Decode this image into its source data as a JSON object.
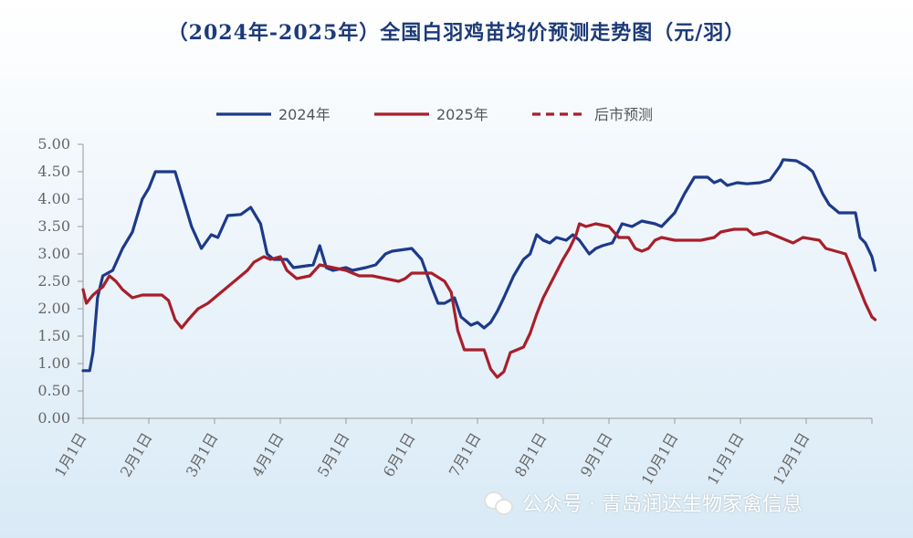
{
  "chart_data": {
    "type": "line",
    "title": "（2024年-2025年）全国白羽鸡苗均价预测走势图（元/羽）",
    "xlabel": "",
    "ylabel": "",
    "ylim": [
      0,
      5
    ],
    "yticks": [
      "0.00",
      "0.50",
      "1.00",
      "1.50",
      "2.00",
      "2.50",
      "3.00",
      "3.50",
      "4.00",
      "4.50",
      "5.00"
    ],
    "xticks": [
      "1月1日",
      "2月1日",
      "3月1日",
      "4月1日",
      "5月1日",
      "6月1日",
      "7月1日",
      "8月1日",
      "9月1日",
      "10月1日",
      "11月1日",
      "12月1日"
    ],
    "grid": false,
    "legend_position": "top",
    "series": [
      {
        "name": "2024年",
        "color": "#1d3a8a",
        "style": "solid",
        "points": [
          [
            0,
            0.87
          ],
          [
            0.1,
            0.87
          ],
          [
            0.15,
            1.2
          ],
          [
            0.22,
            2.2
          ],
          [
            0.3,
            2.6
          ],
          [
            0.45,
            2.7
          ],
          [
            0.6,
            3.1
          ],
          [
            0.75,
            3.4
          ],
          [
            0.9,
            4.0
          ],
          [
            1.0,
            4.2
          ],
          [
            1.1,
            4.5
          ],
          [
            1.4,
            4.5
          ],
          [
            1.55,
            3.9
          ],
          [
            1.65,
            3.5
          ],
          [
            1.8,
            3.1
          ],
          [
            1.95,
            3.35
          ],
          [
            2.05,
            3.3
          ],
          [
            2.2,
            3.7
          ],
          [
            2.4,
            3.72
          ],
          [
            2.55,
            3.85
          ],
          [
            2.7,
            3.55
          ],
          [
            2.8,
            3.0
          ],
          [
            2.9,
            2.9
          ],
          [
            3.1,
            2.9
          ],
          [
            3.2,
            2.75
          ],
          [
            3.5,
            2.8
          ],
          [
            3.6,
            3.15
          ],
          [
            3.7,
            2.75
          ],
          [
            3.8,
            2.7
          ],
          [
            4.0,
            2.75
          ],
          [
            4.1,
            2.7
          ],
          [
            4.3,
            2.75
          ],
          [
            4.45,
            2.8
          ],
          [
            4.6,
            3.0
          ],
          [
            4.7,
            3.05
          ],
          [
            5.0,
            3.1
          ],
          [
            5.15,
            2.9
          ],
          [
            5.3,
            2.4
          ],
          [
            5.4,
            2.1
          ],
          [
            5.5,
            2.1
          ],
          [
            5.65,
            2.2
          ],
          [
            5.75,
            1.85
          ],
          [
            5.9,
            1.7
          ],
          [
            6.0,
            1.75
          ],
          [
            6.1,
            1.65
          ],
          [
            6.2,
            1.75
          ],
          [
            6.3,
            1.95
          ],
          [
            6.4,
            2.2
          ],
          [
            6.55,
            2.6
          ],
          [
            6.7,
            2.9
          ],
          [
            6.8,
            3.0
          ],
          [
            6.9,
            3.35
          ],
          [
            7.0,
            3.25
          ],
          [
            7.1,
            3.2
          ],
          [
            7.2,
            3.3
          ],
          [
            7.35,
            3.25
          ],
          [
            7.45,
            3.35
          ],
          [
            7.55,
            3.25
          ],
          [
            7.7,
            3.0
          ],
          [
            7.8,
            3.1
          ],
          [
            7.9,
            3.15
          ],
          [
            8.05,
            3.2
          ],
          [
            8.2,
            3.55
          ],
          [
            8.35,
            3.5
          ],
          [
            8.5,
            3.6
          ],
          [
            8.7,
            3.55
          ],
          [
            8.8,
            3.5
          ],
          [
            9.0,
            3.75
          ],
          [
            9.15,
            4.1
          ],
          [
            9.3,
            4.4
          ],
          [
            9.5,
            4.4
          ],
          [
            9.6,
            4.3
          ],
          [
            9.7,
            4.35
          ],
          [
            9.8,
            4.25
          ],
          [
            9.95,
            4.3
          ],
          [
            10.1,
            4.28
          ],
          [
            10.3,
            4.3
          ],
          [
            10.45,
            4.35
          ],
          [
            10.6,
            4.6
          ],
          [
            10.65,
            4.72
          ],
          [
            10.85,
            4.7
          ],
          [
            11.0,
            4.6
          ],
          [
            11.1,
            4.5
          ],
          [
            11.25,
            4.1
          ],
          [
            11.35,
            3.9
          ],
          [
            11.5,
            3.75
          ],
          [
            11.75,
            3.75
          ],
          [
            11.82,
            3.3
          ],
          [
            11.9,
            3.2
          ],
          [
            12.0,
            2.95
          ],
          [
            12.05,
            2.7
          ]
        ]
      },
      {
        "name": "2025年",
        "color": "#a81f2a",
        "style": "solid",
        "points": [
          [
            0,
            2.35
          ],
          [
            0.05,
            2.1
          ],
          [
            0.15,
            2.25
          ],
          [
            0.3,
            2.4
          ],
          [
            0.4,
            2.6
          ],
          [
            0.5,
            2.5
          ],
          [
            0.6,
            2.35
          ],
          [
            0.75,
            2.2
          ],
          [
            0.9,
            2.25
          ],
          [
            1.2,
            2.25
          ],
          [
            1.3,
            2.15
          ],
          [
            1.4,
            1.8
          ],
          [
            1.5,
            1.65
          ],
          [
            1.6,
            1.8
          ],
          [
            1.75,
            2.0
          ],
          [
            1.9,
            2.1
          ],
          [
            2.0,
            2.2
          ],
          [
            2.2,
            2.4
          ],
          [
            2.35,
            2.55
          ],
          [
            2.5,
            2.7
          ],
          [
            2.6,
            2.85
          ],
          [
            2.75,
            2.95
          ],
          [
            2.85,
            2.9
          ],
          [
            3.0,
            2.95
          ],
          [
            3.1,
            2.7
          ],
          [
            3.25,
            2.55
          ],
          [
            3.45,
            2.6
          ],
          [
            3.6,
            2.8
          ],
          [
            3.8,
            2.75
          ],
          [
            4.0,
            2.7
          ],
          [
            4.2,
            2.6
          ],
          [
            4.4,
            2.6
          ],
          [
            4.6,
            2.55
          ],
          [
            4.8,
            2.5
          ],
          [
            4.9,
            2.55
          ],
          [
            5.0,
            2.65
          ],
          [
            5.3,
            2.65
          ],
          [
            5.5,
            2.5
          ],
          [
            5.6,
            2.3
          ],
          [
            5.7,
            1.6
          ],
          [
            5.8,
            1.25
          ],
          [
            6.0,
            1.25
          ],
          [
            6.1,
            1.25
          ],
          [
            6.2,
            0.9
          ],
          [
            6.3,
            0.75
          ],
          [
            6.4,
            0.85
          ],
          [
            6.5,
            1.2
          ],
          [
            6.6,
            1.25
          ],
          [
            6.7,
            1.3
          ],
          [
            6.8,
            1.55
          ],
          [
            6.9,
            1.9
          ],
          [
            7.0,
            2.2
          ],
          [
            7.15,
            2.55
          ],
          [
            7.3,
            2.9
          ],
          [
            7.4,
            3.1
          ],
          [
            7.5,
            3.35
          ],
          [
            7.55,
            3.55
          ],
          [
            7.65,
            3.5
          ],
          [
            7.8,
            3.55
          ],
          [
            8.0,
            3.5
          ],
          [
            8.15,
            3.3
          ],
          [
            8.3,
            3.3
          ],
          [
            8.4,
            3.1
          ],
          [
            8.5,
            3.05
          ],
          [
            8.6,
            3.1
          ],
          [
            8.7,
            3.25
          ],
          [
            8.8,
            3.3
          ],
          [
            9.0,
            3.25
          ],
          [
            9.2,
            3.25
          ],
          [
            9.4,
            3.25
          ],
          [
            9.6,
            3.3
          ],
          [
            9.7,
            3.4
          ],
          [
            9.9,
            3.45
          ],
          [
            10.1,
            3.45
          ],
          [
            10.2,
            3.35
          ],
          [
            10.4,
            3.4
          ],
          [
            10.6,
            3.3
          ],
          [
            10.8,
            3.2
          ],
          [
            10.95,
            3.3
          ],
          [
            11.2,
            3.25
          ],
          [
            11.3,
            3.1
          ],
          [
            11.45,
            3.05
          ],
          [
            11.6,
            3.0
          ],
          [
            11.7,
            2.7
          ],
          [
            11.8,
            2.4
          ],
          [
            11.9,
            2.1
          ],
          [
            12.0,
            1.85
          ]
        ]
      },
      {
        "name": "后市预测",
        "color": "#a81f2a",
        "style": "dashed",
        "points": [
          [
            12.0,
            1.85
          ],
          [
            12.05,
            1.8
          ]
        ]
      }
    ]
  },
  "watermark": {
    "text": "公众号 · 青岛润达生物家禽信息"
  }
}
